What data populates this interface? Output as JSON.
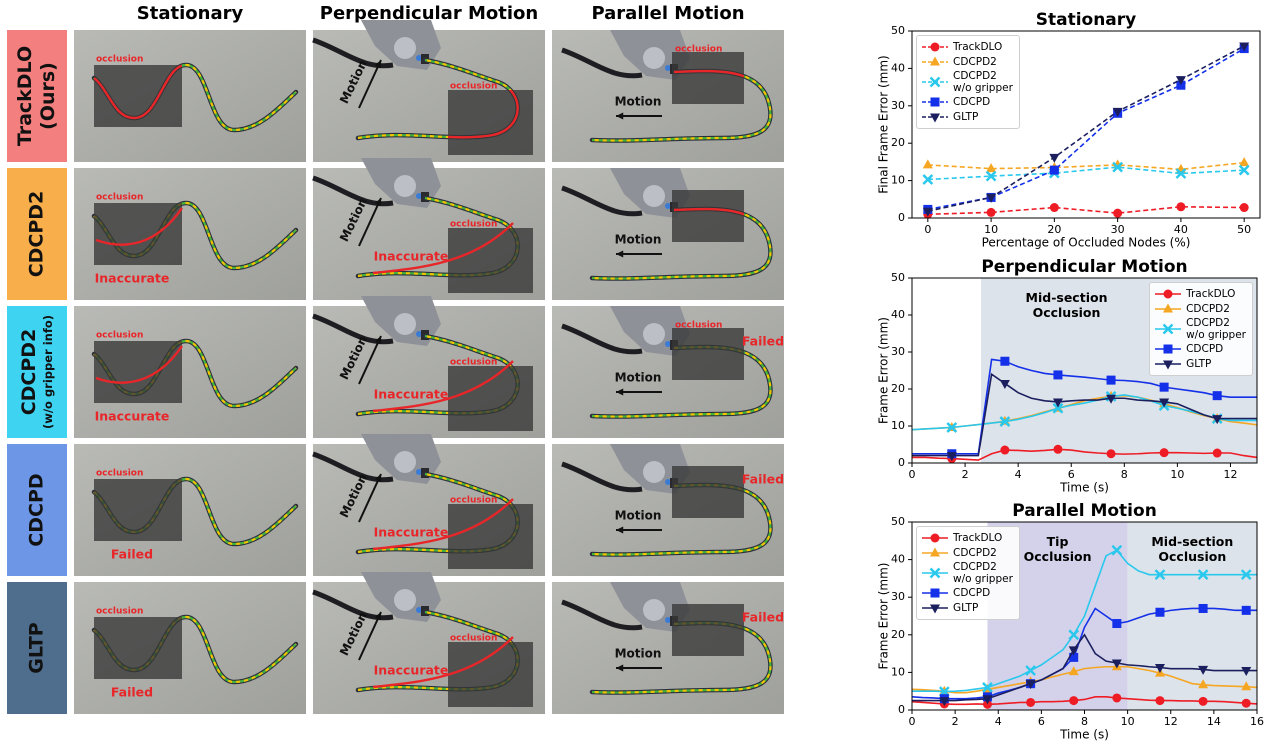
{
  "figure": {
    "columns": [
      "Stationary",
      "Perpendicular Motion",
      "Parallel Motion"
    ],
    "rows": [
      {
        "label": "TrackDLO\n(Ours)",
        "color": "#f47f7f",
        "cells": [
          {
            "occlusion": "occlusion"
          },
          {
            "motion": "Motion",
            "occlusion": "occlusion"
          },
          {
            "motion": "Motion",
            "occlusion": "occlusion"
          }
        ]
      },
      {
        "label": "CDCPD2",
        "color": "#f8ae4b",
        "cells": [
          {
            "occlusion": "occlusion",
            "status": "Inaccurate"
          },
          {
            "motion": "Motion",
            "occlusion": "occlusion",
            "status": "Inaccurate"
          },
          {
            "motion": "Motion"
          }
        ]
      },
      {
        "label": "CDCPD2",
        "sublabel": "(w/o gripper info)",
        "color": "#3fd3f2",
        "cells": [
          {
            "occlusion": "occlusion",
            "status": "Inaccurate"
          },
          {
            "motion": "Motion",
            "occlusion": "occlusion",
            "status": "Inaccurate"
          },
          {
            "motion": "Motion",
            "occlusion": "occlusion",
            "status": "Failed"
          }
        ]
      },
      {
        "label": "CDCPD",
        "color": "#6d97e6",
        "cells": [
          {
            "occlusion": "occlusion",
            "status": "Failed"
          },
          {
            "motion": "Motion",
            "occlusion": "occlusion",
            "status": "Inaccurate"
          },
          {
            "motion": "Motion",
            "status": "Failed"
          }
        ]
      },
      {
        "label": "GLTP",
        "color": "#4f6d8c",
        "cells": [
          {
            "occlusion": "occlusion",
            "status": "Failed"
          },
          {
            "motion": "Motion",
            "occlusion": "occlusion",
            "status": "Inaccurate"
          },
          {
            "motion": "Motion",
            "status": "Failed"
          }
        ]
      }
    ]
  },
  "chart_data": [
    {
      "type": "line",
      "title": "Stationary",
      "xlabel": "Percentage of Occluded Nodes (%)",
      "ylabel": "Final Frame Error (mm)",
      "x": [
        0,
        10,
        20,
        30,
        40,
        50
      ],
      "xlim": [
        -2.5,
        52.5
      ],
      "xticks": [
        0,
        10,
        20,
        30,
        40,
        50
      ],
      "ylim": [
        0,
        50
      ],
      "yticks": [
        0,
        10,
        20,
        30,
        40,
        50
      ],
      "linestyle": "dashed",
      "legend": "upper left",
      "series": [
        {
          "name": "TrackDLO",
          "color": "#ee1c25",
          "marker": "o",
          "values": [
            1,
            1.5,
            2.8,
            1.3,
            3,
            2.8
          ]
        },
        {
          "name": "CDCPD2",
          "color": "#f5a623",
          "marker": "^",
          "values": [
            14.2,
            13.2,
            13.5,
            14.2,
            13.0,
            14.8
          ]
        },
        {
          "name": "CDCPD2\nw/o gripper",
          "color": "#2ac8ec",
          "marker": "x",
          "values": [
            10.3,
            11.2,
            12.0,
            13.6,
            11.9,
            12.8
          ]
        },
        {
          "name": "CDCPD",
          "color": "#1430e8",
          "marker": "s",
          "values": [
            2.3,
            5.5,
            12.8,
            28.0,
            35.5,
            45.3
          ]
        },
        {
          "name": "GLTP",
          "color": "#1b1f5e",
          "marker": "v",
          "values": [
            1.8,
            5.5,
            16.2,
            28.5,
            37.0,
            46.0
          ]
        }
      ]
    },
    {
      "type": "line",
      "title": "Perpendicular Motion",
      "xlabel": "Time (s)",
      "ylabel": "Frame Error (mm)",
      "x": [
        0,
        0.5,
        1,
        1.5,
        2,
        2.5,
        3,
        3.5,
        4,
        4.5,
        5,
        5.5,
        6,
        6.5,
        7,
        7.5,
        8,
        8.5,
        9,
        9.5,
        10,
        10.5,
        11,
        11.5,
        12,
        12.5,
        13
      ],
      "xlim": [
        0,
        13
      ],
      "xticks": [
        0,
        2,
        4,
        6,
        8,
        10,
        12
      ],
      "ylim": [
        0,
        50
      ],
      "yticks": [
        0,
        10,
        20,
        30,
        40,
        50
      ],
      "linestyle": "solid",
      "legend": "upper right",
      "regions": [
        {
          "start": 2.6,
          "end": 13,
          "color": "#dde3ea",
          "label": "Mid-section\nOcclusion"
        }
      ],
      "series": [
        {
          "name": "TrackDLO",
          "color": "#ee1c25",
          "marker": "o",
          "values": [
            1.5,
            1.5,
            1.3,
            1.2,
            1.0,
            0.8,
            2.5,
            3.5,
            3.4,
            3.2,
            3.4,
            3.7,
            3.5,
            3.0,
            2.7,
            2.5,
            2.4,
            2.5,
            2.7,
            2.8,
            2.8,
            2.7,
            2.6,
            2.7,
            2.7,
            2.0,
            1.5
          ]
        },
        {
          "name": "CDCPD2",
          "color": "#f5a623",
          "marker": "^",
          "values": [
            9,
            9.2,
            9.4,
            9.6,
            10,
            10.4,
            10.8,
            11.3,
            12,
            12.8,
            13.8,
            14.8,
            15.8,
            16.8,
            17.5,
            18,
            18.2,
            17.8,
            17,
            16,
            15,
            13.8,
            12.8,
            12,
            11.2,
            10.8,
            10.3
          ]
        },
        {
          "name": "CDCPD2\nw/o gripper",
          "color": "#2ac8ec",
          "marker": "x",
          "values": [
            9,
            9.2,
            9.4,
            9.6,
            10,
            10.4,
            10.8,
            11.2,
            11.8,
            12.6,
            13.6,
            14.8,
            15.6,
            16.2,
            17,
            18,
            18.4,
            17.8,
            16.8,
            15.5,
            14.8,
            14,
            13,
            12,
            11.5,
            11.5,
            11.5
          ]
        },
        {
          "name": "CDCPD",
          "color": "#1430e8",
          "marker": "s",
          "values": [
            2.5,
            2.5,
            2.5,
            2.5,
            2.5,
            2.5,
            28,
            27.5,
            26,
            25,
            24.2,
            23.8,
            23.5,
            23.2,
            22.8,
            22.4,
            22.3,
            22,
            21.5,
            20.5,
            20,
            19.5,
            19,
            18.2,
            17.8,
            17.8,
            17.8
          ]
        },
        {
          "name": "GLTP",
          "color": "#1b1f5e",
          "marker": "v",
          "values": [
            2,
            2,
            2,
            2,
            2,
            2,
            24,
            21.5,
            19,
            17.5,
            16.8,
            16.5,
            16.8,
            17,
            17,
            17.5,
            17.5,
            17,
            16.8,
            16.5,
            16,
            14.5,
            13,
            12,
            12,
            12,
            12
          ]
        }
      ]
    },
    {
      "type": "line",
      "title": "Parallel Motion",
      "xlabel": "Time (s)",
      "ylabel": "Frame Error (mm)",
      "x": [
        0,
        0.5,
        1,
        1.5,
        2,
        2.5,
        3,
        3.5,
        4,
        4.5,
        5,
        5.5,
        6,
        6.5,
        7,
        7.5,
        8,
        8.5,
        9,
        9.5,
        10,
        10.5,
        11,
        11.5,
        12,
        12.5,
        13,
        13.5,
        14,
        14.5,
        15,
        15.5,
        16
      ],
      "xlim": [
        0,
        16
      ],
      "xticks": [
        0,
        2,
        4,
        6,
        8,
        10,
        12,
        14,
        16
      ],
      "ylim": [
        0,
        50
      ],
      "yticks": [
        0,
        10,
        20,
        30,
        40,
        50
      ],
      "linestyle": "solid",
      "legend": "upper left",
      "regions": [
        {
          "start": 3.5,
          "end": 10,
          "color": "#d4d2ea",
          "label": "Tip\nOcclusion"
        },
        {
          "start": 10,
          "end": 16,
          "color": "#dde3ea",
          "label": "Mid-section\nOcclusion"
        }
      ],
      "series": [
        {
          "name": "TrackDLO",
          "color": "#ee1c25",
          "marker": "o",
          "values": [
            2.2,
            2.0,
            1.8,
            1.6,
            1.5,
            1.5,
            1.6,
            1.5,
            1.6,
            1.8,
            2.0,
            2.0,
            2.2,
            2.2,
            2.3,
            2.5,
            2.8,
            3.5,
            3.5,
            3.2,
            3.0,
            2.8,
            2.6,
            2.5,
            2.5,
            2.4,
            2.4,
            2.3,
            2.3,
            2.2,
            2.0,
            1.8,
            1.6
          ]
        },
        {
          "name": "CDCPD2",
          "color": "#f5a623",
          "marker": "^",
          "values": [
            5.5,
            5.4,
            5.2,
            5.0,
            4.6,
            4.6,
            5.0,
            5.5,
            6.0,
            6.5,
            7.0,
            7.5,
            8.0,
            8.8,
            9.5,
            10.2,
            11.0,
            11.3,
            11.5,
            11.5,
            11.5,
            11.0,
            10.5,
            9.8,
            9.0,
            8.0,
            7.0,
            6.7,
            6.5,
            6.4,
            6.3,
            6.2,
            6.0
          ]
        },
        {
          "name": "CDCPD2\nw/o gripper",
          "color": "#2ac8ec",
          "marker": "x",
          "values": [
            5.0,
            5.0,
            5.0,
            4.9,
            5.0,
            5.2,
            5.6,
            6.0,
            7.0,
            8.0,
            9.0,
            10.5,
            12.0,
            14.0,
            16.0,
            20.0,
            25.0,
            33.0,
            41.0,
            42.5,
            39.0,
            37.0,
            36.0,
            36.0,
            36.0,
            36.0,
            36.0,
            36.0,
            36.0,
            36.0,
            36.0,
            36.0,
            36.0
          ]
        },
        {
          "name": "CDCPD",
          "color": "#1430e8",
          "marker": "s",
          "values": [
            3.5,
            3.3,
            3.2,
            3.0,
            3.0,
            3.0,
            3.2,
            3.5,
            4.5,
            5.2,
            6.0,
            7.0,
            8.0,
            9.5,
            11.0,
            14.0,
            22.0,
            27.0,
            25.0,
            23.0,
            23.5,
            24.5,
            25.5,
            26.0,
            26.5,
            26.8,
            27.0,
            27.0,
            27.0,
            26.8,
            26.5,
            26.5,
            26.5
          ]
        },
        {
          "name": "GLTP",
          "color": "#1b1f5e",
          "marker": "v",
          "values": [
            2.5,
            2.5,
            2.5,
            2.5,
            2.5,
            2.7,
            2.8,
            3.0,
            4.0,
            5.0,
            6.0,
            7.0,
            8.0,
            9.5,
            11.0,
            16.0,
            20.0,
            15.0,
            13.0,
            12.5,
            12.0,
            11.8,
            11.5,
            11.3,
            11.0,
            11.0,
            11.0,
            10.8,
            10.5,
            10.5,
            10.5,
            10.5,
            10.5
          ]
        }
      ]
    }
  ]
}
